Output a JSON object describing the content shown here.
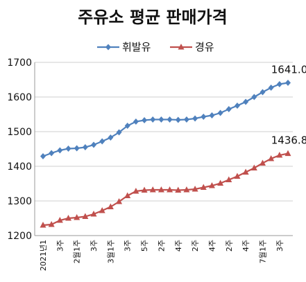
{
  "chart_data": {
    "type": "line",
    "title": "주유소 평균 판매가격",
    "xlabel": "",
    "ylabel": "",
    "ylim": [
      1200,
      1700
    ],
    "yticks": [
      "1200",
      "1300",
      "1400",
      "1500",
      "1600",
      "1700"
    ],
    "grid": true,
    "legend_position": "top",
    "x_tick_labels": [
      "2021년1",
      "",
      "3주",
      "",
      "2월1주",
      "",
      "3주",
      "",
      "3월1주",
      "",
      "3주",
      "",
      "5주",
      "",
      "2주",
      "",
      "4주",
      "",
      "2주",
      "",
      "4주",
      "",
      "2주",
      "",
      "4주",
      "",
      "7월1주",
      "",
      "3주",
      ""
    ],
    "series": [
      {
        "name": "휘발유",
        "color": "#4f81bd",
        "marker": "diamond",
        "values": [
          1429,
          1438,
          1446,
          1451,
          1452,
          1455,
          1462,
          1472,
          1483,
          1498,
          1517,
          1529,
          1533,
          1535,
          1535,
          1535,
          1534,
          1535,
          1538,
          1543,
          1547,
          1554,
          1565,
          1575,
          1586,
          1600,
          1614,
          1627,
          1637,
          1641
        ]
      },
      {
        "name": "경유",
        "color": "#c0504d",
        "marker": "triangle",
        "values": [
          1230,
          1232,
          1244,
          1250,
          1252,
          1255,
          1262,
          1272,
          1283,
          1298,
          1315,
          1328,
          1331,
          1332,
          1332,
          1332,
          1331,
          1332,
          1334,
          1339,
          1344,
          1351,
          1361,
          1371,
          1383,
          1395,
          1409,
          1422,
          1432,
          1436.8
        ]
      }
    ],
    "data_labels": [
      "1641.0",
      "1436.8"
    ]
  }
}
